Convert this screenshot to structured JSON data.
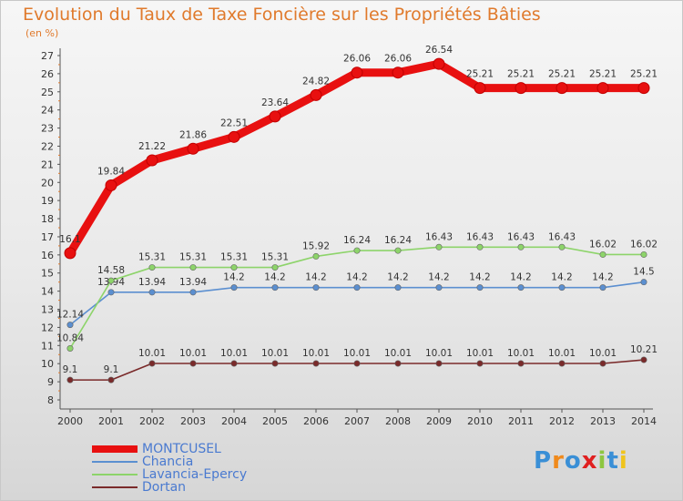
{
  "title": "Evolution du Taux de Taxe Foncière sur les Propriétés Bâties",
  "subtitle": "(en %)",
  "logo": {
    "letters": [
      "P",
      "r",
      "o",
      "x",
      "i",
      "t",
      "i"
    ],
    "colors": [
      "#3a8fd6",
      "#f08a1c",
      "#3a8fd6",
      "#e02020",
      "#8dc63f",
      "#3a8fd6",
      "#f0c41c"
    ]
  },
  "chart_data": {
    "type": "line",
    "x": [
      "2000",
      "2001",
      "2002",
      "2003",
      "2004",
      "2005",
      "2006",
      "2007",
      "2008",
      "2009",
      "2010",
      "2011",
      "2012",
      "2013",
      "2014"
    ],
    "ylim": [
      8,
      27
    ],
    "yticks": [
      "8",
      "9",
      "10",
      "11",
      "12",
      "13",
      "14",
      "15",
      "16",
      "17",
      "18",
      "19",
      "20",
      "21",
      "22",
      "23",
      "24",
      "25",
      "26",
      "27"
    ],
    "series": [
      {
        "name": "MONTCUSEL",
        "color": "#e81010",
        "values": [
          16.1,
          19.84,
          21.22,
          21.86,
          22.51,
          23.64,
          24.82,
          26.06,
          26.06,
          26.54,
          25.21,
          25.21,
          25.21,
          25.21,
          25.21
        ],
        "labels": [
          "16.1",
          "19.84",
          "21.22",
          "21.86",
          "22.51",
          "23.64",
          "24.82",
          "26.06",
          "26.06",
          "26.54",
          "25.21",
          "25.21",
          "25.21",
          "25.21",
          "25.21"
        ]
      },
      {
        "name": "Chancia",
        "color": "#5b8fd0",
        "values": [
          12.14,
          13.94,
          13.94,
          13.94,
          14.2,
          14.2,
          14.2,
          14.2,
          14.2,
          14.2,
          14.2,
          14.2,
          14.2,
          14.2,
          14.5
        ],
        "labels": [
          "12.14",
          "13.94",
          "13.94",
          "13.94",
          "14.2",
          "14.2",
          "14.2",
          "14.2",
          "14.2",
          "14.2",
          "14.2",
          "14.2",
          "14.2",
          "14.2",
          "14.5"
        ]
      },
      {
        "name": "Lavancia-Epercy",
        "color": "#8dd46a",
        "values": [
          10.84,
          14.58,
          15.31,
          15.31,
          15.31,
          15.31,
          15.92,
          16.24,
          16.24,
          16.43,
          16.43,
          16.43,
          16.43,
          16.02,
          16.02
        ],
        "labels": [
          "10.84",
          "14.58",
          "15.31",
          "15.31",
          "15.31",
          "15.31",
          "15.92",
          "16.24",
          "16.24",
          "16.43",
          "16.43",
          "16.43",
          "16.43",
          "16.02",
          "16.02"
        ]
      },
      {
        "name": "Dortan",
        "color": "#7a2a2a",
        "values": [
          9.1,
          9.1,
          10.01,
          10.01,
          10.01,
          10.01,
          10.01,
          10.01,
          10.01,
          10.01,
          10.01,
          10.01,
          10.01,
          10.01,
          10.21
        ],
        "labels": [
          "9.1",
          "9.1",
          "10.01",
          "10.01",
          "10.01",
          "10.01",
          "10.01",
          "10.01",
          "10.01",
          "10.01",
          "10.01",
          "10.01",
          "10.01",
          "10.01",
          "10.21"
        ]
      }
    ]
  }
}
